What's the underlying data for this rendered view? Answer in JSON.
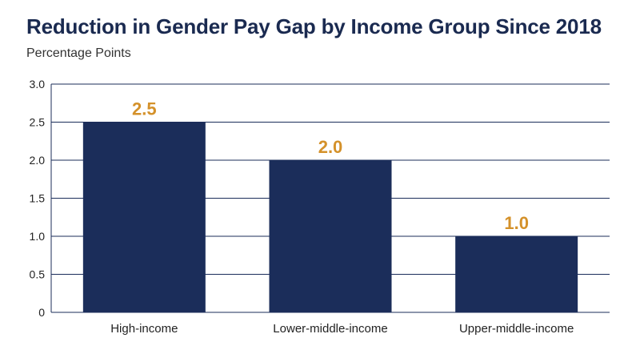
{
  "chart_data": {
    "type": "bar",
    "title": "Reduction in Gender Pay Gap by Income Group Since 2018",
    "subtitle": "Percentage Points",
    "xlabel": "",
    "ylabel": "",
    "categories": [
      "High-income",
      "Lower-middle-income",
      "Upper-middle-income"
    ],
    "values": [
      2.5,
      2.0,
      1.0
    ],
    "data_labels": [
      "2.5",
      "2.0",
      "1.0"
    ],
    "y_ticks": [
      "0",
      "0.5",
      "1.0",
      "1.5",
      "2.0",
      "2.5",
      "3.0"
    ],
    "ylim": [
      0,
      3
    ],
    "grid": true,
    "legend": "none",
    "colors": {
      "bar": "#1b2d5a",
      "label": "#d4912a",
      "grid": "#1b2d5a",
      "title": "#1a2a50"
    }
  }
}
